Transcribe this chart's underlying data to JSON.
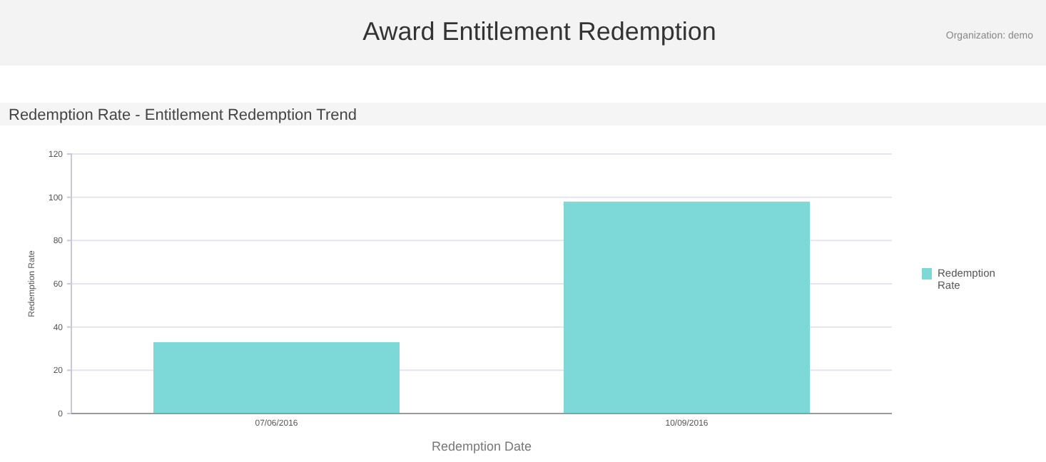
{
  "chart_data": {
    "type": "bar",
    "title": "Award Entitlement Redemption",
    "subtitle": "Redemption Rate - Entitlement Redemption Trend",
    "annotations": [
      "Organization: demo"
    ],
    "xlabel": "Redemption Date",
    "ylabel": "Redemption Rate",
    "categories": [
      "07/06/2016",
      "10/09/2016"
    ],
    "series": [
      {
        "name": "Redemption Rate",
        "color": "#7dd8d8",
        "values": [
          33,
          98
        ]
      }
    ],
    "ylim": [
      0,
      120
    ],
    "yticks": [
      0,
      20,
      40,
      60,
      80,
      100,
      120
    ],
    "grid": "y",
    "legend": "right"
  }
}
